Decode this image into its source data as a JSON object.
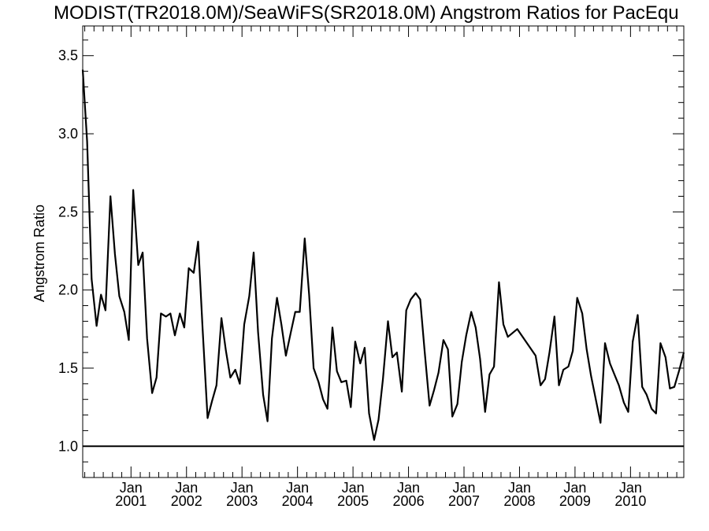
{
  "chart_data": {
    "type": "line",
    "title": "MODIST(TR2018.0M)/SeaWiFS(SR2018.0M)  Angstrom Ratios for PacEqu",
    "xlabel": "",
    "ylabel": "Angstrom Ratio",
    "ylim": [
      0.8,
      3.69
    ],
    "xlim": [
      2000.13,
      2010.96
    ],
    "y_ticks": [
      {
        "value": 1.0,
        "label": "1.0"
      },
      {
        "value": 1.5,
        "label": "1.5"
      },
      {
        "value": 2.0,
        "label": "2.0"
      },
      {
        "value": 2.5,
        "label": "2.5"
      },
      {
        "value": 3.0,
        "label": "3.0"
      },
      {
        "value": 3.5,
        "label": "3.5"
      }
    ],
    "x_ticks": [
      {
        "value": 2001.0,
        "month": "Jan",
        "year": "2001"
      },
      {
        "value": 2002.0,
        "month": "Jan",
        "year": "2002"
      },
      {
        "value": 2003.0,
        "month": "Jan",
        "year": "2003"
      },
      {
        "value": 2004.0,
        "month": "Jan",
        "year": "2004"
      },
      {
        "value": 2005.0,
        "month": "Jan",
        "year": "2005"
      },
      {
        "value": 2006.0,
        "month": "Jan",
        "year": "2006"
      },
      {
        "value": 2007.0,
        "month": "Jan",
        "year": "2007"
      },
      {
        "value": 2008.0,
        "month": "Jan",
        "year": "2008"
      },
      {
        "value": 2009.0,
        "month": "Jan",
        "year": "2009"
      },
      {
        "value": 2010.0,
        "month": "Jan",
        "year": "2010"
      }
    ],
    "reference_line": 1.0,
    "grid": false,
    "series": [
      {
        "x": [
          2000.13,
          2000.21,
          2000.29,
          2000.38,
          2000.46,
          2000.54,
          2000.63,
          2000.71,
          2000.79,
          2000.88,
          2000.96,
          2001.04,
          2001.13,
          2001.21,
          2001.29,
          2001.38,
          2001.46,
          2001.54,
          2001.63,
          2001.71,
          2001.79,
          2001.88,
          2001.96,
          2002.04,
          2002.13,
          2002.21,
          2002.29,
          2002.38,
          2002.46,
          2002.54,
          2002.63,
          2002.71,
          2002.79,
          2002.88,
          2002.96,
          2003.04,
          2003.13,
          2003.21,
          2003.29,
          2003.38,
          2003.46,
          2003.54,
          2003.63,
          2003.71,
          2003.79,
          2003.88,
          2003.96,
          2004.04,
          2004.13,
          2004.21,
          2004.29,
          2004.38,
          2004.46,
          2004.54,
          2004.63,
          2004.71,
          2004.79,
          2004.88,
          2004.96,
          2005.04,
          2005.13,
          2005.21,
          2005.29,
          2005.38,
          2005.46,
          2005.54,
          2005.63,
          2005.71,
          2005.79,
          2005.88,
          2005.96,
          2006.04,
          2006.13,
          2006.21,
          2006.29,
          2006.38,
          2006.46,
          2006.54,
          2006.63,
          2006.71,
          2006.79,
          2006.88,
          2006.96,
          2007.04,
          2007.13,
          2007.21,
          2007.29,
          2007.38,
          2007.46,
          2007.54,
          2007.63,
          2007.71,
          2007.79,
          2007.96,
          2008.29,
          2008.38,
          2008.46,
          2008.54,
          2008.63,
          2008.71,
          2008.79,
          2008.88,
          2008.96,
          2009.04,
          2009.13,
          2009.21,
          2009.29,
          2009.38,
          2009.46,
          2009.54,
          2009.63,
          2009.71,
          2009.79,
          2009.88,
          2009.96,
          2010.04,
          2010.13,
          2010.21,
          2010.29,
          2010.38,
          2010.46,
          2010.54,
          2010.63,
          2010.71,
          2010.79,
          2010.88,
          2010.96
        ],
        "values": [
          3.41,
          2.95,
          2.07,
          1.77,
          1.97,
          1.87,
          2.6,
          2.23,
          1.96,
          1.86,
          1.68,
          2.64,
          2.16,
          2.24,
          1.69,
          1.34,
          1.44,
          1.85,
          1.83,
          1.85,
          1.71,
          1.85,
          1.76,
          2.14,
          2.11,
          2.31,
          1.75,
          1.18,
          1.29,
          1.39,
          1.82,
          1.61,
          1.44,
          1.49,
          1.4,
          1.78,
          1.96,
          2.24,
          1.73,
          1.33,
          1.16,
          1.69,
          1.95,
          1.78,
          1.58,
          1.73,
          1.86,
          1.86,
          2.33,
          1.97,
          1.5,
          1.41,
          1.3,
          1.24,
          1.76,
          1.48,
          1.41,
          1.42,
          1.25,
          1.67,
          1.53,
          1.63,
          1.21,
          1.04,
          1.17,
          1.43,
          1.8,
          1.57,
          1.6,
          1.35,
          1.87,
          1.94,
          1.98,
          1.94,
          1.61,
          1.26,
          1.36,
          1.47,
          1.68,
          1.62,
          1.19,
          1.27,
          1.54,
          1.71,
          1.86,
          1.76,
          1.56,
          1.22,
          1.46,
          1.51,
          2.05,
          1.78,
          1.7,
          1.75,
          1.58,
          1.39,
          1.43,
          1.6,
          1.83,
          1.39,
          1.49,
          1.51,
          1.61,
          1.95,
          1.85,
          1.62,
          1.45,
          1.29,
          1.15,
          1.66,
          1.53,
          1.46,
          1.39,
          1.28,
          1.22,
          1.67,
          1.84,
          1.38,
          1.33,
          1.24,
          1.21,
          1.66,
          1.57,
          1.37,
          1.38,
          1.49,
          1.6
        ]
      }
    ]
  }
}
